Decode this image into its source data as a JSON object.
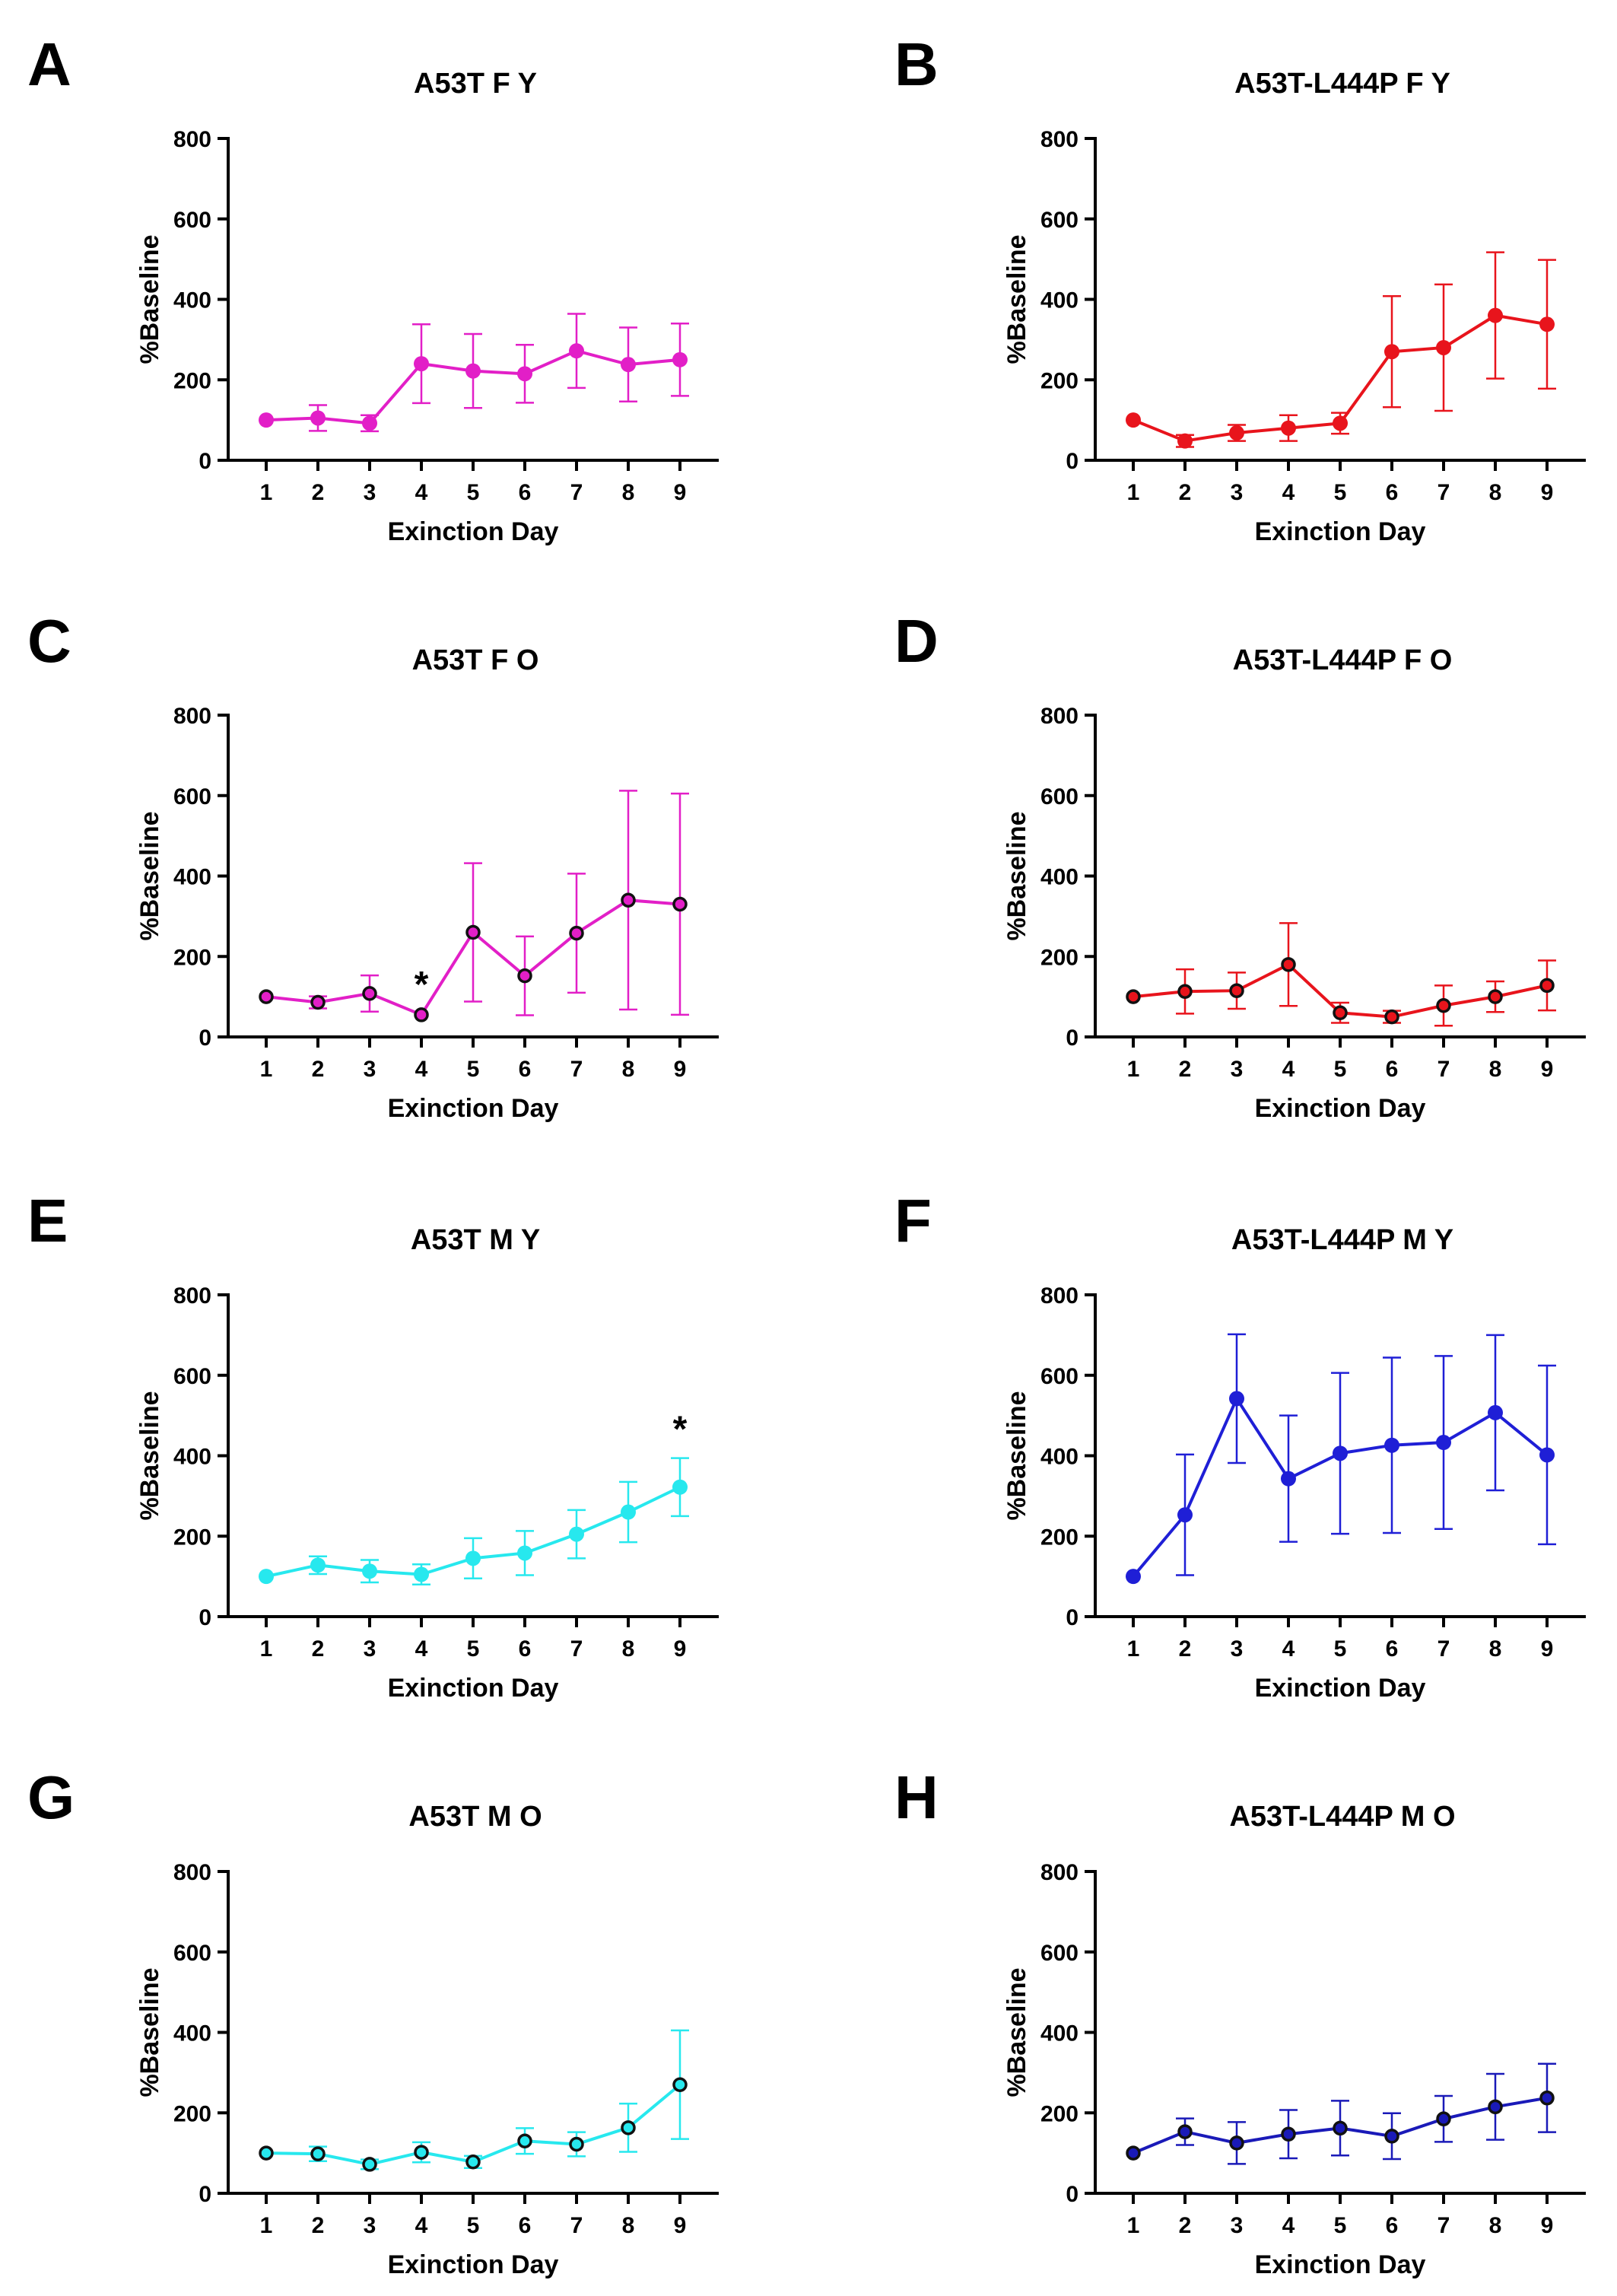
{
  "figure": {
    "panel_count": 8
  },
  "chart_data": [
    {
      "panel": "A",
      "title": "A53T F Y",
      "type": "line",
      "xlabel": "Exinction Day",
      "ylabel": "%Baseline",
      "ylim": [
        0,
        800
      ],
      "yticks": [
        0,
        200,
        400,
        600,
        800
      ],
      "categories": [
        "1",
        "2",
        "3",
        "4",
        "5",
        "6",
        "7",
        "8",
        "9"
      ],
      "series": [
        {
          "name": "A53T F Y",
          "color": "#e21fc7",
          "marker": "filled",
          "values": [
            100,
            105,
            92,
            240,
            222,
            215,
            272,
            238,
            250
          ],
          "err": [
            0,
            32,
            20,
            98,
            92,
            72,
            92,
            92,
            90
          ]
        }
      ],
      "annotations": []
    },
    {
      "panel": "B",
      "title": "A53T-L444P F Y",
      "type": "line",
      "xlabel": "Exinction Day",
      "ylabel": "%Baseline",
      "ylim": [
        0,
        800
      ],
      "yticks": [
        0,
        200,
        400,
        600,
        800
      ],
      "categories": [
        "1",
        "2",
        "3",
        "4",
        "5",
        "6",
        "7",
        "8",
        "9"
      ],
      "series": [
        {
          "name": "A53T-L444P F Y",
          "color": "#e8141c",
          "marker": "filled",
          "values": [
            100,
            48,
            68,
            80,
            92,
            270,
            280,
            360,
            338
          ],
          "err": [
            0,
            15,
            20,
            32,
            26,
            138,
            157,
            157,
            160
          ]
        }
      ],
      "annotations": []
    },
    {
      "panel": "C",
      "title": "A53T F O",
      "type": "line",
      "xlabel": "Exinction Day",
      "ylabel": "%Baseline",
      "ylim": [
        0,
        800
      ],
      "yticks": [
        0,
        200,
        400,
        600,
        800
      ],
      "categories": [
        "1",
        "2",
        "3",
        "4",
        "5",
        "6",
        "7",
        "8",
        "9"
      ],
      "series": [
        {
          "name": "A53T F O",
          "color": "#e21fc7",
          "marker": "open",
          "values": [
            100,
            86,
            108,
            55,
            260,
            152,
            258,
            340,
            330
          ],
          "err": [
            0,
            15,
            45,
            0,
            172,
            98,
            148,
            272,
            275
          ]
        }
      ],
      "annotations": [
        {
          "x": "4",
          "y": 55,
          "text": "*"
        }
      ]
    },
    {
      "panel": "D",
      "title": "A53T-L444P F O",
      "type": "line",
      "xlabel": "Exinction Day",
      "ylabel": "%Baseline",
      "ylim": [
        0,
        800
      ],
      "yticks": [
        0,
        200,
        400,
        600,
        800
      ],
      "categories": [
        "1",
        "2",
        "3",
        "4",
        "5",
        "6",
        "7",
        "8",
        "9"
      ],
      "series": [
        {
          "name": "A53T-L444P F O",
          "color": "#e8141c",
          "marker": "open",
          "values": [
            100,
            113,
            115,
            180,
            60,
            50,
            78,
            100,
            128
          ],
          "err": [
            0,
            55,
            45,
            103,
            25,
            15,
            50,
            38,
            62
          ]
        }
      ],
      "annotations": []
    },
    {
      "panel": "E",
      "title": "A53T M Y",
      "type": "line",
      "xlabel": "Exinction Day",
      "ylabel": "%Baseline",
      "ylim": [
        0,
        800
      ],
      "yticks": [
        0,
        200,
        400,
        600,
        800
      ],
      "categories": [
        "1",
        "2",
        "3",
        "4",
        "5",
        "6",
        "7",
        "8",
        "9"
      ],
      "series": [
        {
          "name": "A53T M Y",
          "color": "#27e8ee",
          "marker": "filled",
          "values": [
            100,
            128,
            113,
            105,
            145,
            158,
            205,
            260,
            322
          ],
          "err": [
            0,
            22,
            28,
            25,
            50,
            55,
            60,
            75,
            72
          ]
        }
      ],
      "annotations": [
        {
          "x": "9",
          "y": 322,
          "text": "*"
        }
      ]
    },
    {
      "panel": "F",
      "title": "A53T-L444P M Y",
      "type": "line",
      "xlabel": "Exinction Day",
      "ylabel": "%Baseline",
      "ylim": [
        0,
        800
      ],
      "yticks": [
        0,
        200,
        400,
        600,
        800
      ],
      "categories": [
        "1",
        "2",
        "3",
        "4",
        "5",
        "6",
        "7",
        "8",
        "9"
      ],
      "series": [
        {
          "name": "A53T-L444P M Y",
          "color": "#1f1fd6",
          "marker": "filled",
          "values": [
            100,
            253,
            542,
            343,
            406,
            426,
            433,
            507,
            402
          ],
          "err": [
            0,
            150,
            160,
            157,
            200,
            218,
            215,
            193,
            222
          ]
        }
      ],
      "annotations": []
    },
    {
      "panel": "G",
      "title": "A53T M O",
      "type": "line",
      "xlabel": "Exinction Day",
      "ylabel": "%Baseline",
      "ylim": [
        0,
        800
      ],
      "yticks": [
        0,
        200,
        400,
        600,
        800
      ],
      "categories": [
        "1",
        "2",
        "3",
        "4",
        "5",
        "6",
        "7",
        "8",
        "9"
      ],
      "series": [
        {
          "name": "A53T M O",
          "color": "#27e8ee",
          "marker": "open",
          "values": [
            100,
            98,
            72,
            102,
            78,
            130,
            122,
            163,
            270
          ],
          "err": [
            0,
            18,
            12,
            25,
            15,
            32,
            30,
            60,
            135
          ]
        }
      ],
      "annotations": []
    },
    {
      "panel": "H",
      "title": "A53T-L444P M O",
      "type": "line",
      "xlabel": "Exinction Day",
      "ylabel": "%Baseline",
      "ylim": [
        0,
        800
      ],
      "yticks": [
        0,
        200,
        400,
        600,
        800
      ],
      "categories": [
        "1",
        "2",
        "3",
        "4",
        "5",
        "6",
        "7",
        "8",
        "9"
      ],
      "series": [
        {
          "name": "A53T-L444P M O",
          "color": "#1a1ab8",
          "marker": "open",
          "values": [
            100,
            153,
            125,
            147,
            162,
            142,
            185,
            215,
            237
          ],
          "err": [
            0,
            33,
            52,
            60,
            68,
            57,
            57,
            82,
            85
          ]
        }
      ],
      "annotations": []
    }
  ]
}
